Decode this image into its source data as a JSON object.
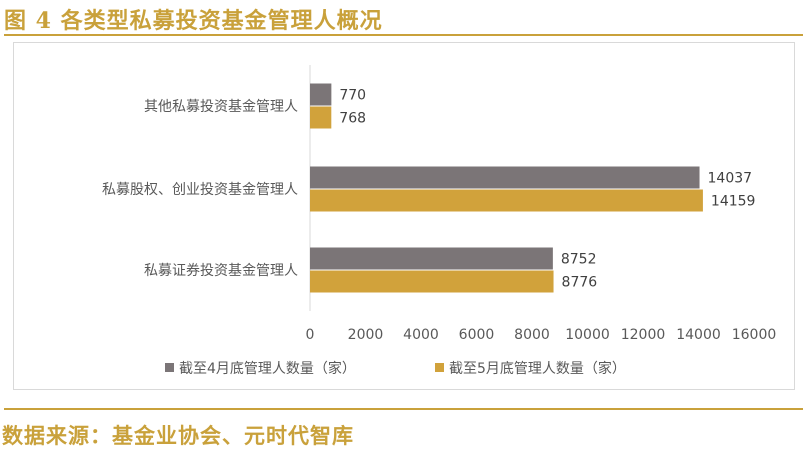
{
  "figure_title": "图 4 各类型私募投资基金管理人概况",
  "source_text": "数据来源：基金业协会、元时代智库",
  "colors": {
    "accent": "#c9a13b",
    "series_april": "#7b7577",
    "series_may": "#d1a23b",
    "text": "#595959"
  },
  "chart_data": {
    "type": "bar",
    "orientation": "horizontal",
    "title": "",
    "xlabel": "",
    "ylabel": "",
    "categories": [
      "其他私募投资基金管理人",
      "私募股权、创业投资基金管理人",
      "私募证券投资基金管理人"
    ],
    "series": [
      {
        "name": "截至4月底管理人数量（家）",
        "values": [
          770,
          14037,
          8752
        ]
      },
      {
        "name": "截至5月底管理人数量（家）",
        "values": [
          768,
          14159,
          8776
        ]
      }
    ],
    "xlim": [
      0,
      16000
    ],
    "x_ticks": [
      "0",
      "2000",
      "4000",
      "6000",
      "8000",
      "10000",
      "12000",
      "14000",
      "16000"
    ],
    "grid": false,
    "legend_position": "bottom"
  }
}
